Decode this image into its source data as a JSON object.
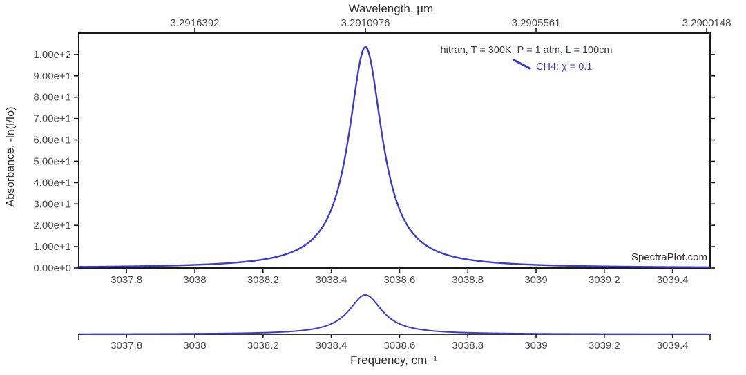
{
  "figure": {
    "source_watermark": "SpectraPlot.com",
    "background": "#ffffff",
    "axis_color": "#1a1a1a"
  },
  "chart_data": {
    "type": "line",
    "title": "",
    "xlabel": "Frequency, cm⁻¹",
    "ylabel": "Absorbance, -ln(I/Io)",
    "top_axis": {
      "title": "Wavelength, µm",
      "tick_labels": [
        "3.2916392",
        "3.2910976",
        "3.2905561",
        "3.2900148"
      ],
      "tick_positions_cm1": [
        3038.0,
        3038.5,
        3039.0,
        3039.5
      ]
    },
    "xlim": [
      3037.66,
      3039.51
    ],
    "ylim": [
      0,
      110
    ],
    "grid": false,
    "x_ticks": {
      "values": [
        3037.8,
        3038.0,
        3038.2,
        3038.4,
        3038.6,
        3038.8,
        3039.0,
        3039.2,
        3039.4
      ],
      "labels": [
        "3037.8",
        "3038",
        "3038.2",
        "3038.4",
        "3038.6",
        "3038.8",
        "3039",
        "3039.2",
        "3039.4"
      ]
    },
    "y_ticks": {
      "values": [
        0,
        10,
        20,
        30,
        40,
        50,
        60,
        70,
        80,
        90,
        100
      ],
      "labels": [
        "0.00e+0",
        "1.00e+1",
        "2.00e+1",
        "3.00e+1",
        "4.00e+1",
        "5.00e+1",
        "6.00e+1",
        "7.00e+1",
        "8.00e+1",
        "9.00e+1",
        "1.00e+2"
      ]
    },
    "legend": {
      "position": "top-right",
      "conditions": "hitran, T = 300K, P = 1 atm, L = 100cm",
      "entries": [
        {
          "label": "CH4: χ = 0.1",
          "color": "#3b3bd1",
          "marker": "line"
        }
      ]
    },
    "series": [
      {
        "name": "CH4: χ = 0.1",
        "model": "lorentzian",
        "peak_center_cm1": 3038.5,
        "peak_absorbance": 103.5,
        "hwhm_cm1": 0.06,
        "baseline": 0,
        "color": "#3b3bd1",
        "points": [
          [
            3037.66,
            0.52
          ],
          [
            3037.8,
            0.76
          ],
          [
            3038.0,
            1.47
          ],
          [
            3038.2,
            3.98
          ],
          [
            3038.3,
            8.55
          ],
          [
            3038.4,
            27.4
          ],
          [
            3038.44,
            51.8
          ],
          [
            3038.5,
            103.5
          ],
          [
            3038.56,
            51.8
          ],
          [
            3038.6,
            27.4
          ],
          [
            3038.7,
            8.55
          ],
          [
            3038.8,
            3.98
          ],
          [
            3039.0,
            1.47
          ],
          [
            3039.2,
            0.76
          ],
          [
            3039.4,
            0.46
          ],
          [
            3039.51,
            0.36
          ]
        ]
      }
    ],
    "overview": {
      "description": "full-range navigator strip showing the same CH4 spectrum",
      "xlim": [
        3037.66,
        3039.51
      ],
      "tick_labels": [
        "3037.8",
        "3038",
        "3038.2",
        "3038.4",
        "3038.6",
        "3038.8",
        "3039",
        "3039.2",
        "3039.4"
      ]
    }
  }
}
